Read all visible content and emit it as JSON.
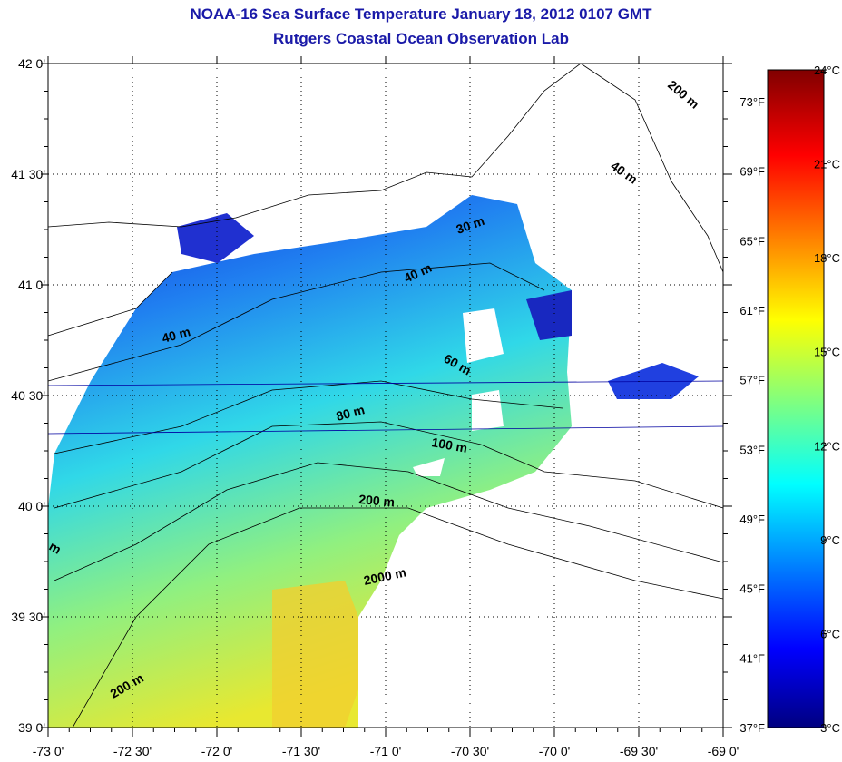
{
  "title": {
    "line1": "NOAA-16 Sea Surface Temperature January 18, 2012 0107 GMT",
    "line2": "Rutgers Coastal Ocean Observation Lab"
  },
  "map": {
    "lon_range": [
      -73,
      -69
    ],
    "lat_range": [
      39,
      42
    ],
    "x_ticks": [
      "-73 0'",
      "-72 30'",
      "-72 0'",
      "-71 30'",
      "-71 0'",
      "-70 30'",
      "-70 0'",
      "-69 30'",
      "-69 0'"
    ],
    "y_ticks": [
      "39 0'",
      "39 30'",
      "40 0'",
      "40 30'",
      "41 0'",
      "41 30'",
      "42 0'"
    ],
    "contour_labels": [
      "200 m",
      "40 m",
      "30 m",
      "40 m",
      "40 m",
      "60 m",
      "80 m",
      "100 m",
      "200 m",
      "2000 m",
      "200 m",
      "m"
    ]
  },
  "colorbar": {
    "celsius_range": [
      3,
      24
    ],
    "celsius_labels": [
      "24°C",
      "21°C",
      "18°C",
      "15°C",
      "12°C",
      "9°C",
      "6°C",
      "3°C"
    ],
    "fahrenheit_labels": [
      "73°F",
      "69°F",
      "65°F",
      "61°F",
      "57°F",
      "53°F",
      "49°F",
      "45°F",
      "41°F",
      "37°F"
    ]
  }
}
